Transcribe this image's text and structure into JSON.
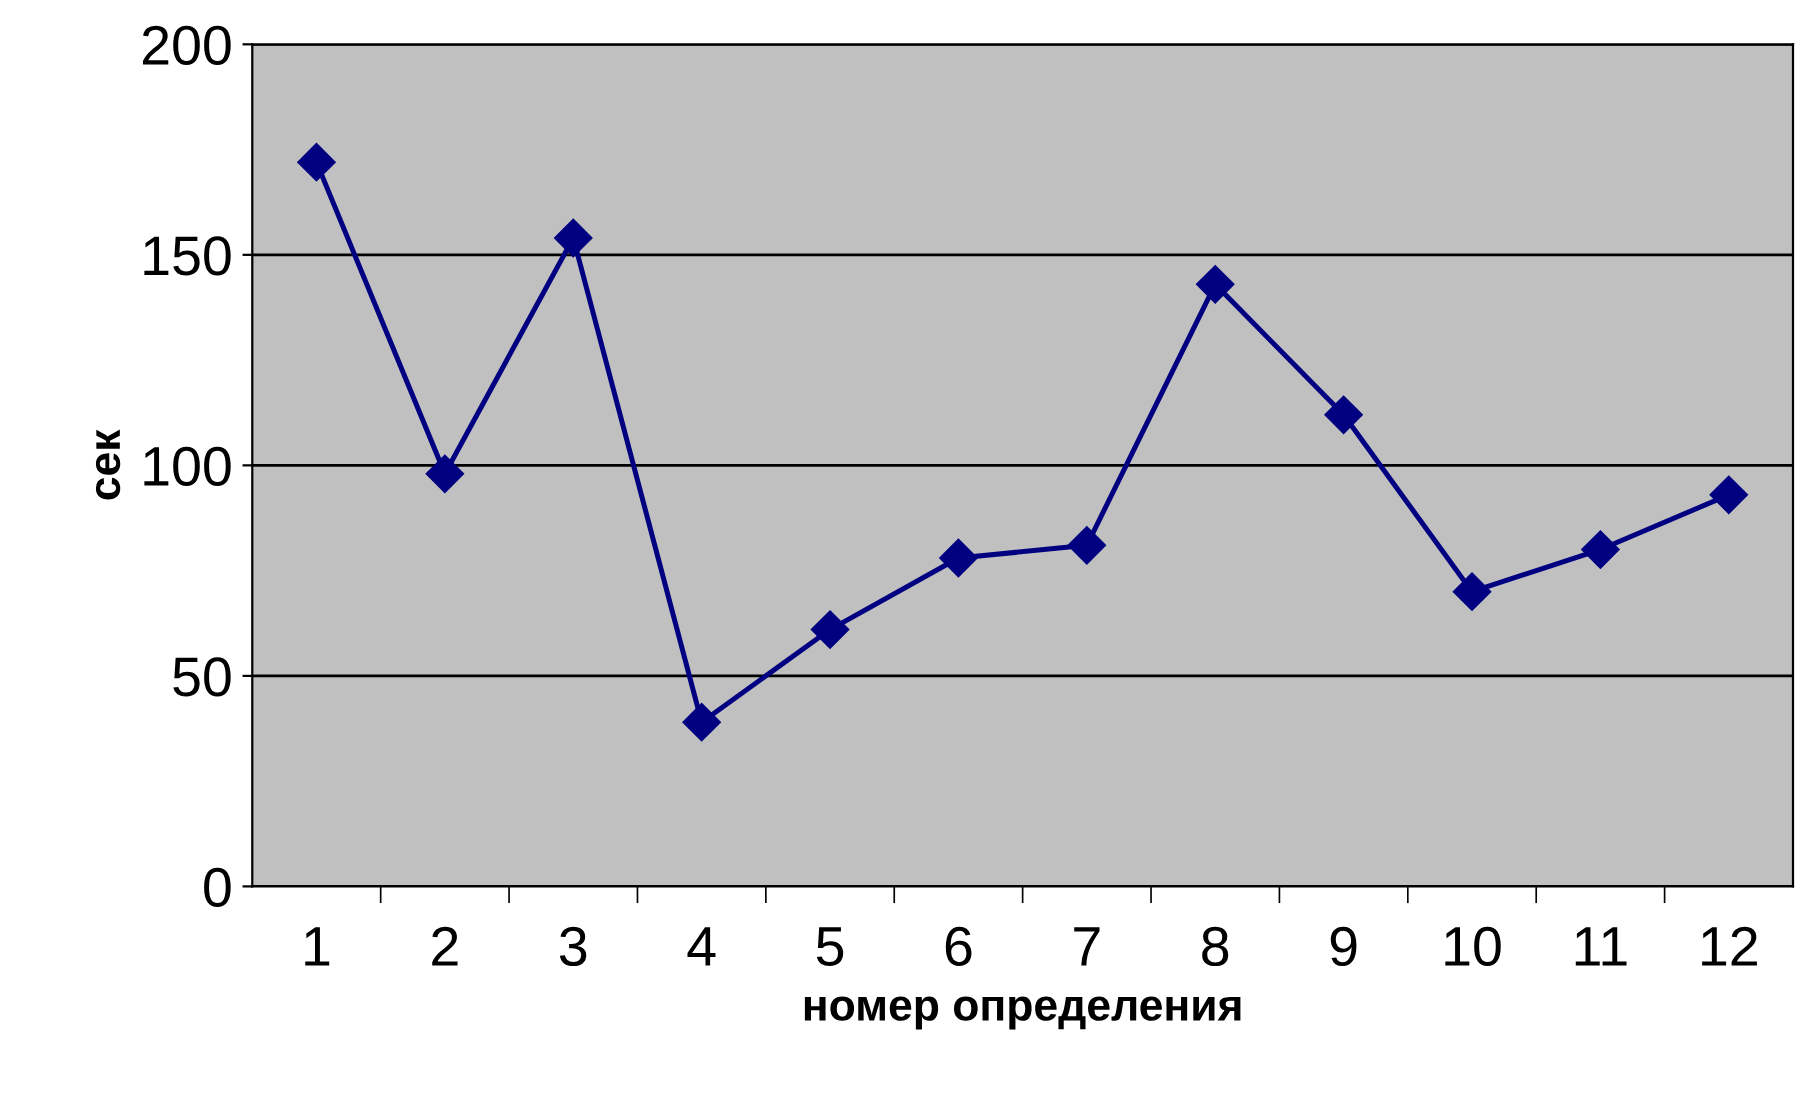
{
  "chart_data": {
    "type": "line",
    "xlabel": "номер определения",
    "ylabel": "сек",
    "categories": [
      "1",
      "2",
      "3",
      "4",
      "5",
      "6",
      "7",
      "8",
      "9",
      "10",
      "11",
      "12"
    ],
    "series": [
      {
        "color": "#000080",
        "values": [
          172,
          98,
          154,
          39,
          61,
          78,
          81,
          143,
          112,
          70,
          80,
          93
        ]
      }
    ],
    "ylim": [
      0,
      200
    ],
    "yticks": [
      0,
      50,
      100,
      150,
      200
    ],
    "grid": "y",
    "marker": "diamond",
    "line_style": "solid",
    "legend": false
  }
}
